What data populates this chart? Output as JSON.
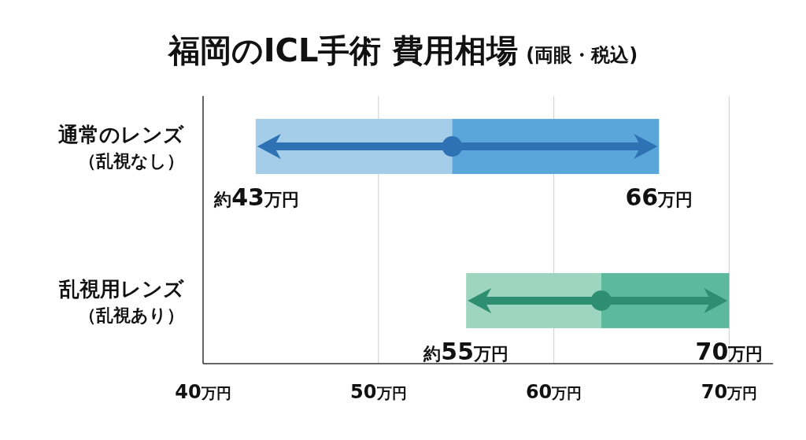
{
  "chart_data": {
    "type": "bar",
    "orientation": "horizontal",
    "title": "福岡のICL手術 費用相場",
    "subtitle": "(両眼・税込)",
    "categories": [
      "通常のレンズ（乱視なし）",
      "乱視用レンズ（乱視あり）"
    ],
    "series": [
      {
        "colors": [
          "#a3cde9",
          "#9dd5c1"
        ],
        "base": [
          43,
          55
        ],
        "values": [
          11.2,
          7.7
        ]
      },
      {
        "colors": [
          "#5aa6da",
          "#5cb99c"
        ],
        "base": [
          54.2,
          62.7
        ],
        "values": [
          11.8,
          7.3
        ]
      },
      {
        "type": "scatter",
        "colors": [
          "#2f72b3",
          "#2e8f70"
        ],
        "values": [
          54.2,
          62.7
        ]
      }
    ],
    "xlim": [
      40,
      72.5
    ],
    "xticks": [
      {
        "value": 40,
        "label": "40万円"
      },
      {
        "value": 50,
        "label": "50万円"
      },
      {
        "value": 60,
        "label": "60万円"
      },
      {
        "value": 70,
        "label": "70万円"
      }
    ],
    "grid": "x",
    "annotations": [
      {
        "text": "約43万円",
        "x": 43,
        "y": "通常のレンズ（乱視なし）"
      },
      {
        "text": "66万円",
        "x": 66,
        "y": "通常のレンズ（乱視なし）"
      },
      {
        "text": "約55万円",
        "x": 55,
        "y": "乱視用レンズ（乱視あり）"
      },
      {
        "text": "70万円",
        "x": 70,
        "y": "乱視用レンズ（乱視あり）"
      }
    ]
  }
}
